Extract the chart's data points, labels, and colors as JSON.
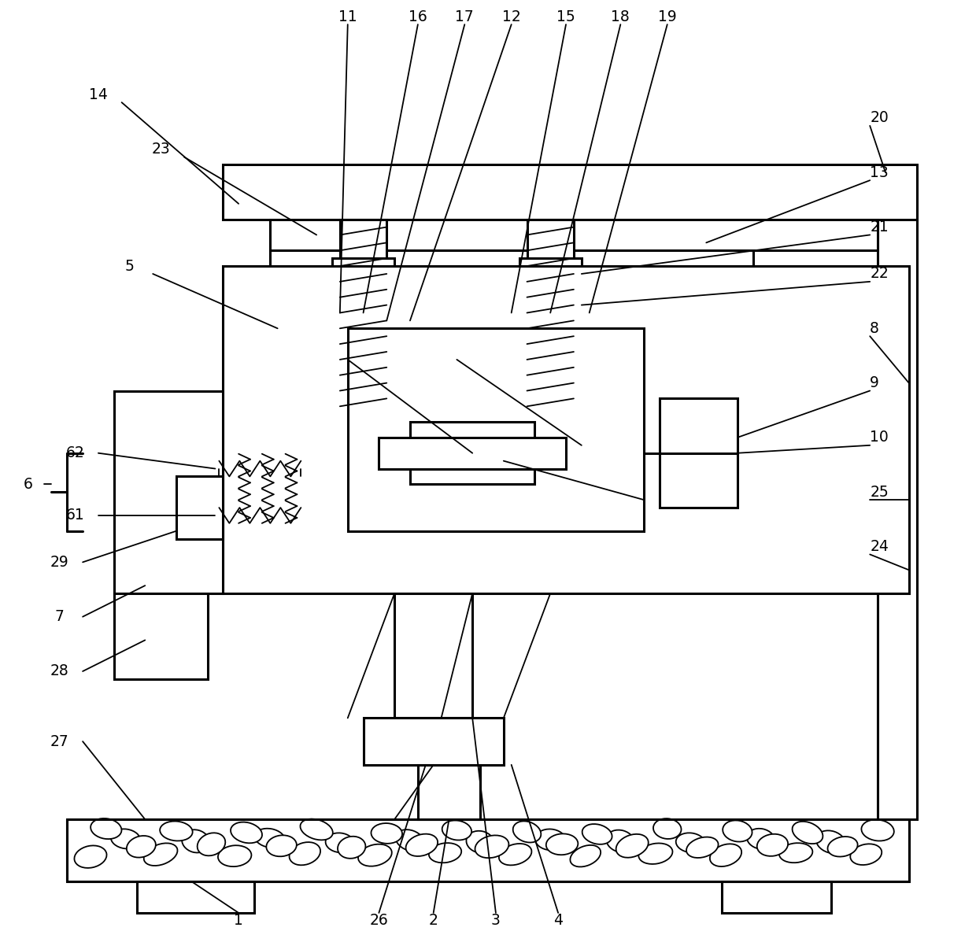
{
  "bg": "#ffffff",
  "lc": "#000000",
  "lw": 2.2,
  "tlw": 1.3,
  "fs": 13.5,
  "fig_w": 12.4,
  "fig_h": 11.83
}
